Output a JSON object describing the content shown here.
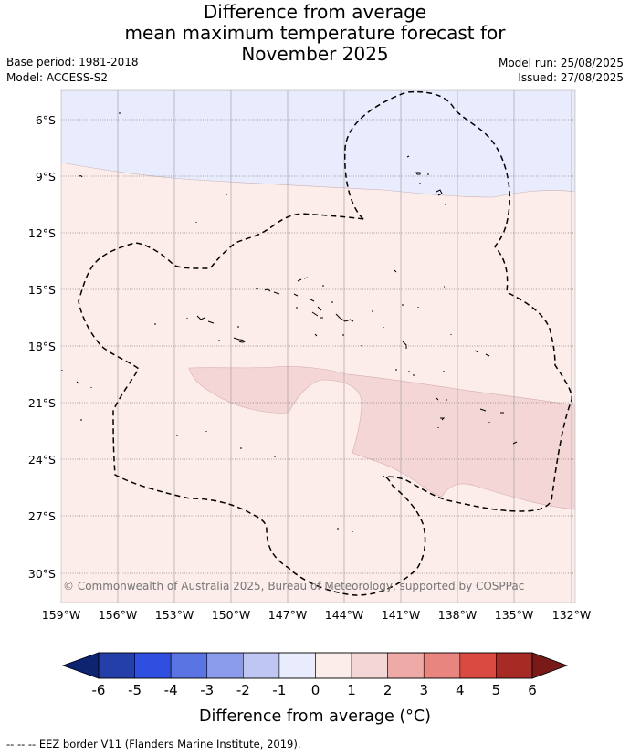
{
  "header": {
    "title_lines": [
      "Difference from average",
      "mean maximum temperature forecast for",
      "November 2025"
    ],
    "base_period": "Base period: 1981-2018",
    "model": "Model: ACCESS-S2",
    "model_run": "Model run: 25/08/2025",
    "issued": "Issued: 27/08/2025"
  },
  "map": {
    "lat_labels": [
      "6°S",
      "9°S",
      "12°S",
      "15°S",
      "18°S",
      "21°S",
      "24°S",
      "27°S",
      "30°S"
    ],
    "lon_labels": [
      "159°W",
      "156°W",
      "153°W",
      "150°W",
      "147°W",
      "144°W",
      "141°W",
      "138°W",
      "135°W",
      "132°W"
    ],
    "copyright": "© Commonwealth of Australia 2025, Bureau of Meteorology, supported by COSPPac",
    "colors": {
      "band_-1_0": "#e8ecfc",
      "band_0_1": "#fcecea",
      "band_1_2": "#f4d6d6",
      "eez_border": "#000000"
    }
  },
  "colorbar": {
    "ticks": [
      "-6",
      "-5",
      "-4",
      "-3",
      "-2",
      "-1",
      "0",
      "1",
      "2",
      "3",
      "4",
      "5",
      "6"
    ],
    "colors": [
      "#2440a8",
      "#2f4fe0",
      "#5a74e4",
      "#8a9bec",
      "#bfc6f4",
      "#e8ecfc",
      "#fcecea",
      "#f4d6d6",
      "#eeaaa6",
      "#e8857e",
      "#d94a40",
      "#a82a24"
    ],
    "under_color": "#0e2470",
    "over_color": "#7a1a18",
    "label": "Difference from average (°C)"
  },
  "footer": {
    "legend": "-- -- -- EEZ border V11 (Flanders Marine Institute, 2019)."
  }
}
